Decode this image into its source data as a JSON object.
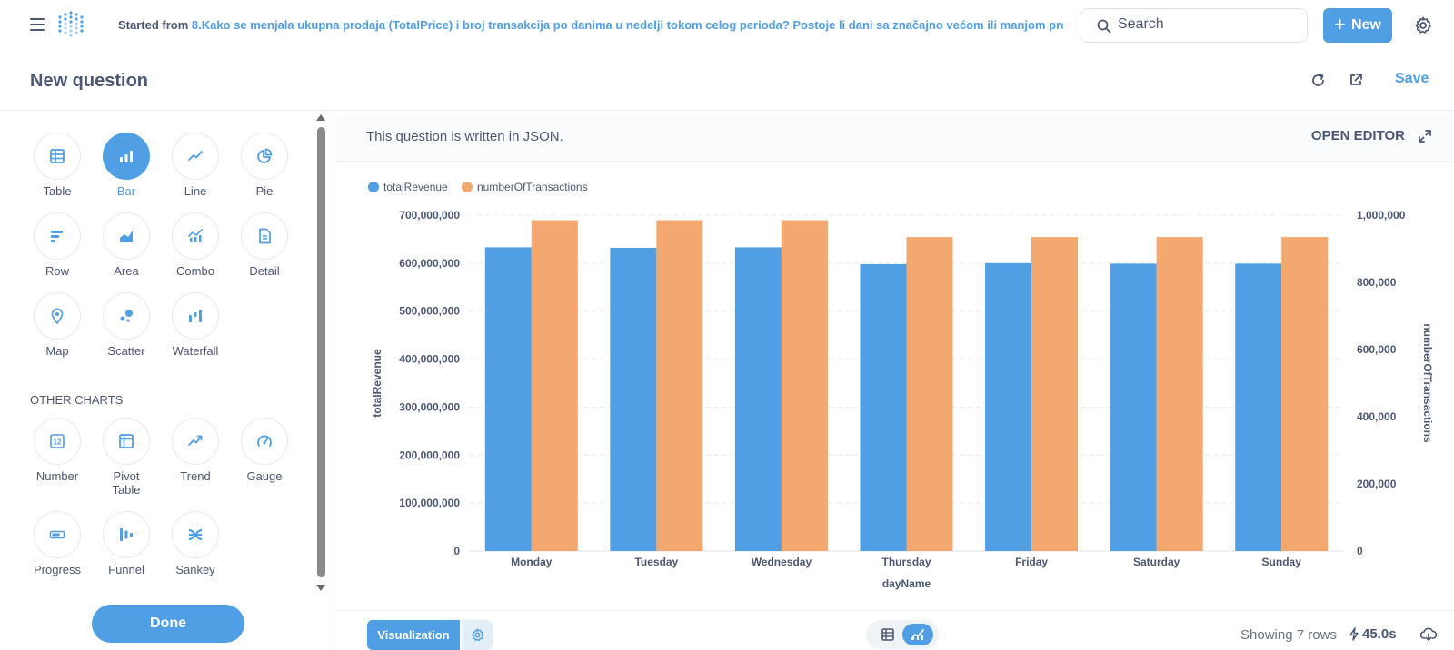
{
  "topbar": {
    "breadcrumb_prefix": "Started from ",
    "breadcrumb_link": "8.Kako se menjala ukupna prodaja (TotalPrice) i broj transakcija po danima u nedelji tokom celog perioda? Postoje li dani sa značajno većom ili manjom prodajom? - NEOP...",
    "search_placeholder": "Search",
    "new_label": "New"
  },
  "question": {
    "title": "New question",
    "save_label": "Save"
  },
  "sidebar": {
    "charts": [
      {
        "label": "Table",
        "icon": "table-icon"
      },
      {
        "label": "Bar",
        "icon": "bar-chart-icon",
        "active": true
      },
      {
        "label": "Line",
        "icon": "line-chart-icon"
      },
      {
        "label": "Pie",
        "icon": "pie-chart-icon"
      },
      {
        "label": "Row",
        "icon": "row-chart-icon"
      },
      {
        "label": "Area",
        "icon": "area-chart-icon"
      },
      {
        "label": "Combo",
        "icon": "combo-chart-icon"
      },
      {
        "label": "Detail",
        "icon": "detail-icon"
      },
      {
        "label": "Map",
        "icon": "map-pin-icon"
      },
      {
        "label": "Scatter",
        "icon": "scatter-icon"
      },
      {
        "label": "Waterfall",
        "icon": "waterfall-icon"
      }
    ],
    "other_heading": "OTHER CHARTS",
    "other_charts": [
      {
        "label": "Number",
        "icon": "number-icon"
      },
      {
        "label": "Pivot\nTable",
        "icon": "pivot-table-icon"
      },
      {
        "label": "Trend",
        "icon": "trend-icon"
      },
      {
        "label": "Gauge",
        "icon": "gauge-icon"
      },
      {
        "label": "Progress",
        "icon": "progress-icon"
      },
      {
        "label": "Funnel",
        "icon": "funnel-icon"
      },
      {
        "label": "Sankey",
        "icon": "sankey-icon"
      }
    ],
    "done_label": "Done"
  },
  "main": {
    "json_notice": "This question is written in JSON.",
    "open_editor": "OPEN EDITOR"
  },
  "footer": {
    "visualization_label": "Visualization",
    "showing": "Showing 7 rows",
    "timing": "45.0s"
  },
  "colors": {
    "accent": "#509ee3",
    "series1": "#509ee3",
    "series2": "#f2a86f"
  },
  "chart_data": {
    "type": "bar",
    "categories": [
      "Monday",
      "Tuesday",
      "Wednesday",
      "Thursday",
      "Friday",
      "Saturday",
      "Sunday"
    ],
    "series": [
      {
        "name": "totalRevenue",
        "axis": "left",
        "values": [
          633000000,
          632000000,
          633000000,
          598000000,
          600000000,
          599000000,
          599000000
        ]
      },
      {
        "name": "numberOfTransactions",
        "axis": "right",
        "values": [
          985000,
          985000,
          985000,
          935000,
          935000,
          935000,
          935000
        ]
      }
    ],
    "xlabel": "dayName",
    "ylabel": "totalRevenue",
    "y2label": "numberOfTransactions",
    "ylim": [
      0,
      700000000
    ],
    "y2lim": [
      0,
      1000000
    ],
    "yticks": [
      "0",
      "100,000,000",
      "200,000,000",
      "300,000,000",
      "400,000,000",
      "500,000,000",
      "600,000,000",
      "700,000,000"
    ],
    "y2ticks": [
      "0",
      "200,000",
      "400,000",
      "600,000",
      "800,000",
      "1,000,000"
    ],
    "legend_position": "top-left",
    "grid": true
  }
}
